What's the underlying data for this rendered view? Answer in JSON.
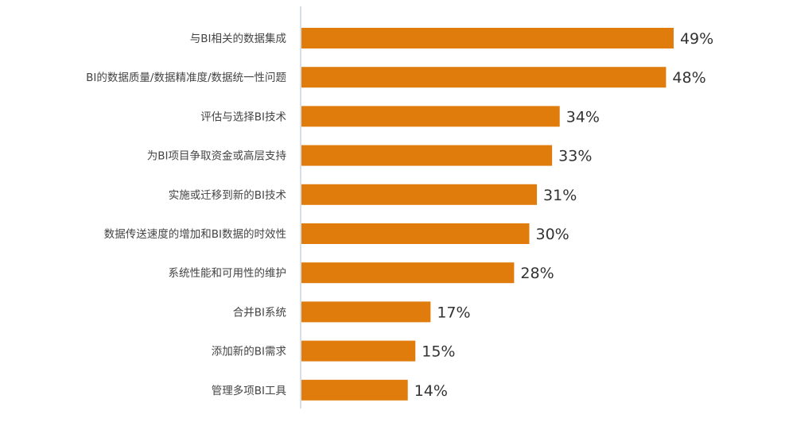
{
  "chart_data": {
    "type": "bar",
    "orientation": "horizontal",
    "categories": [
      "与BI相关的数据集成",
      "BI的数据质量/数据精准度/数据统一性问题",
      "评估与选择BI技术",
      "为BI项目争取资金或高层支持",
      "实施或迁移到新的BI技术",
      "数据传送速度的增加和BI数据的时效性",
      "系统性能和可用性的维护",
      "合并BI系统",
      "添加新的BI需求",
      "管理多项BI工具"
    ],
    "values": [
      49,
      48,
      34,
      33,
      31,
      30,
      28,
      17,
      15,
      14
    ],
    "value_labels": [
      "49%",
      "48%",
      "34%",
      "33%",
      "31%",
      "30%",
      "28%",
      "17%",
      "15%",
      "14%"
    ],
    "unit": "%",
    "xlim": [
      0,
      50
    ],
    "grid": false,
    "bar_color": "#E07C0B",
    "axis_color": "#C9D3E0"
  }
}
